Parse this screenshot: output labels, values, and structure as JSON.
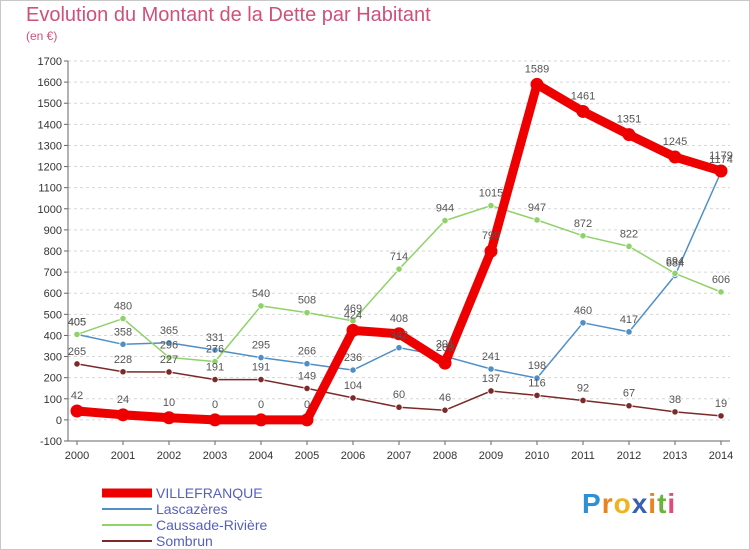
{
  "header": {
    "title": "Evolution du Montant de la Dette par Habitant",
    "subtitle": "(en €)"
  },
  "brand": {
    "letters": [
      "P",
      "r",
      "o",
      "x",
      "i",
      "t",
      "i"
    ],
    "colors": [
      "#2d8fd5",
      "#e8831f",
      "#f2b21c",
      "#3b5fb0",
      "#e8831f",
      "#6bb33a",
      "#e34a7a"
    ]
  },
  "chart_data": {
    "type": "line",
    "title": "Evolution du Montant de la Dette par Habitant",
    "subtitle": "(en €)",
    "xlabel": "",
    "ylabel": "",
    "x": [
      2000,
      2001,
      2002,
      2003,
      2004,
      2005,
      2006,
      2007,
      2008,
      2009,
      2010,
      2011,
      2012,
      2013,
      2014
    ],
    "ylim": [
      -100,
      1700
    ],
    "y_ticks": [
      -100,
      0,
      100,
      200,
      300,
      400,
      500,
      600,
      700,
      800,
      900,
      1000,
      1100,
      1200,
      1300,
      1400,
      1500,
      1600,
      1700
    ],
    "grid": "horizontal",
    "legend_position": "bottom-left",
    "series": [
      {
        "name": "VILLEFRANQUE",
        "color": "#ee0000",
        "highlight": true,
        "values": [
          42,
          24,
          10,
          0,
          0,
          0,
          424,
          408,
          269,
          799,
          1589,
          1461,
          1351,
          1245,
          1179
        ],
        "labels": [
          "42",
          "24",
          "10",
          "0",
          "0",
          "0",
          "424",
          "408",
          "269",
          "799",
          "1589",
          "1461",
          "1351",
          "1245",
          "1179"
        ]
      },
      {
        "name": "Lascazères",
        "color": "#4f8fc6",
        "highlight": false,
        "values": [
          405,
          358,
          365,
          331,
          295,
          266,
          236,
          342,
          301,
          241,
          198,
          460,
          417,
          684,
          1174
        ],
        "labels": [
          "405",
          "358",
          "365",
          "331",
          "295",
          "266",
          "236",
          "342",
          "301",
          "241",
          "198",
          "460",
          "417",
          "684",
          "1174"
        ]
      },
      {
        "name": "Caussade-Rivière",
        "color": "#8fd26a",
        "highlight": false,
        "values": [
          405,
          480,
          296,
          276,
          540,
          508,
          469,
          714,
          944,
          1015,
          947,
          872,
          822,
          694,
          606
        ],
        "labels": [
          "405",
          "480",
          "296",
          "276",
          "540",
          "508",
          "469",
          "714",
          "944",
          "1015",
          "947",
          "872",
          "822",
          "694",
          "606"
        ]
      },
      {
        "name": "Sombrun",
        "color": "#7b2a2a",
        "highlight": false,
        "values": [
          265,
          228,
          227,
          191,
          191,
          149,
          104,
          60,
          46,
          137,
          116,
          92,
          67,
          38,
          19
        ],
        "labels": [
          "265",
          "228",
          "227",
          "191",
          "191",
          "149",
          "104",
          "60",
          "46",
          "137",
          "116",
          "92",
          "67",
          "38",
          "19"
        ]
      }
    ]
  }
}
